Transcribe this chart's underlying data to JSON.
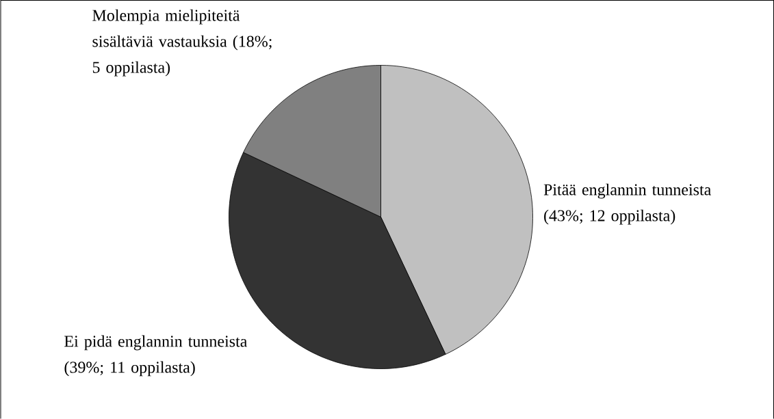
{
  "chart_data": {
    "type": "pie",
    "categories": [
      "Pitää englannin tunneista (43%; 12 oppilasta)",
      "Ei pidä englannin tunneista (39%; 11 oppilasta)",
      "Molempia mielipiteitä sisältäviä vastauksia (18%; 5 oppilasta)"
    ],
    "values": [
      43,
      39,
      18
    ],
    "colors": [
      "#c0c0c0",
      "#333333",
      "#808080"
    ]
  }
}
